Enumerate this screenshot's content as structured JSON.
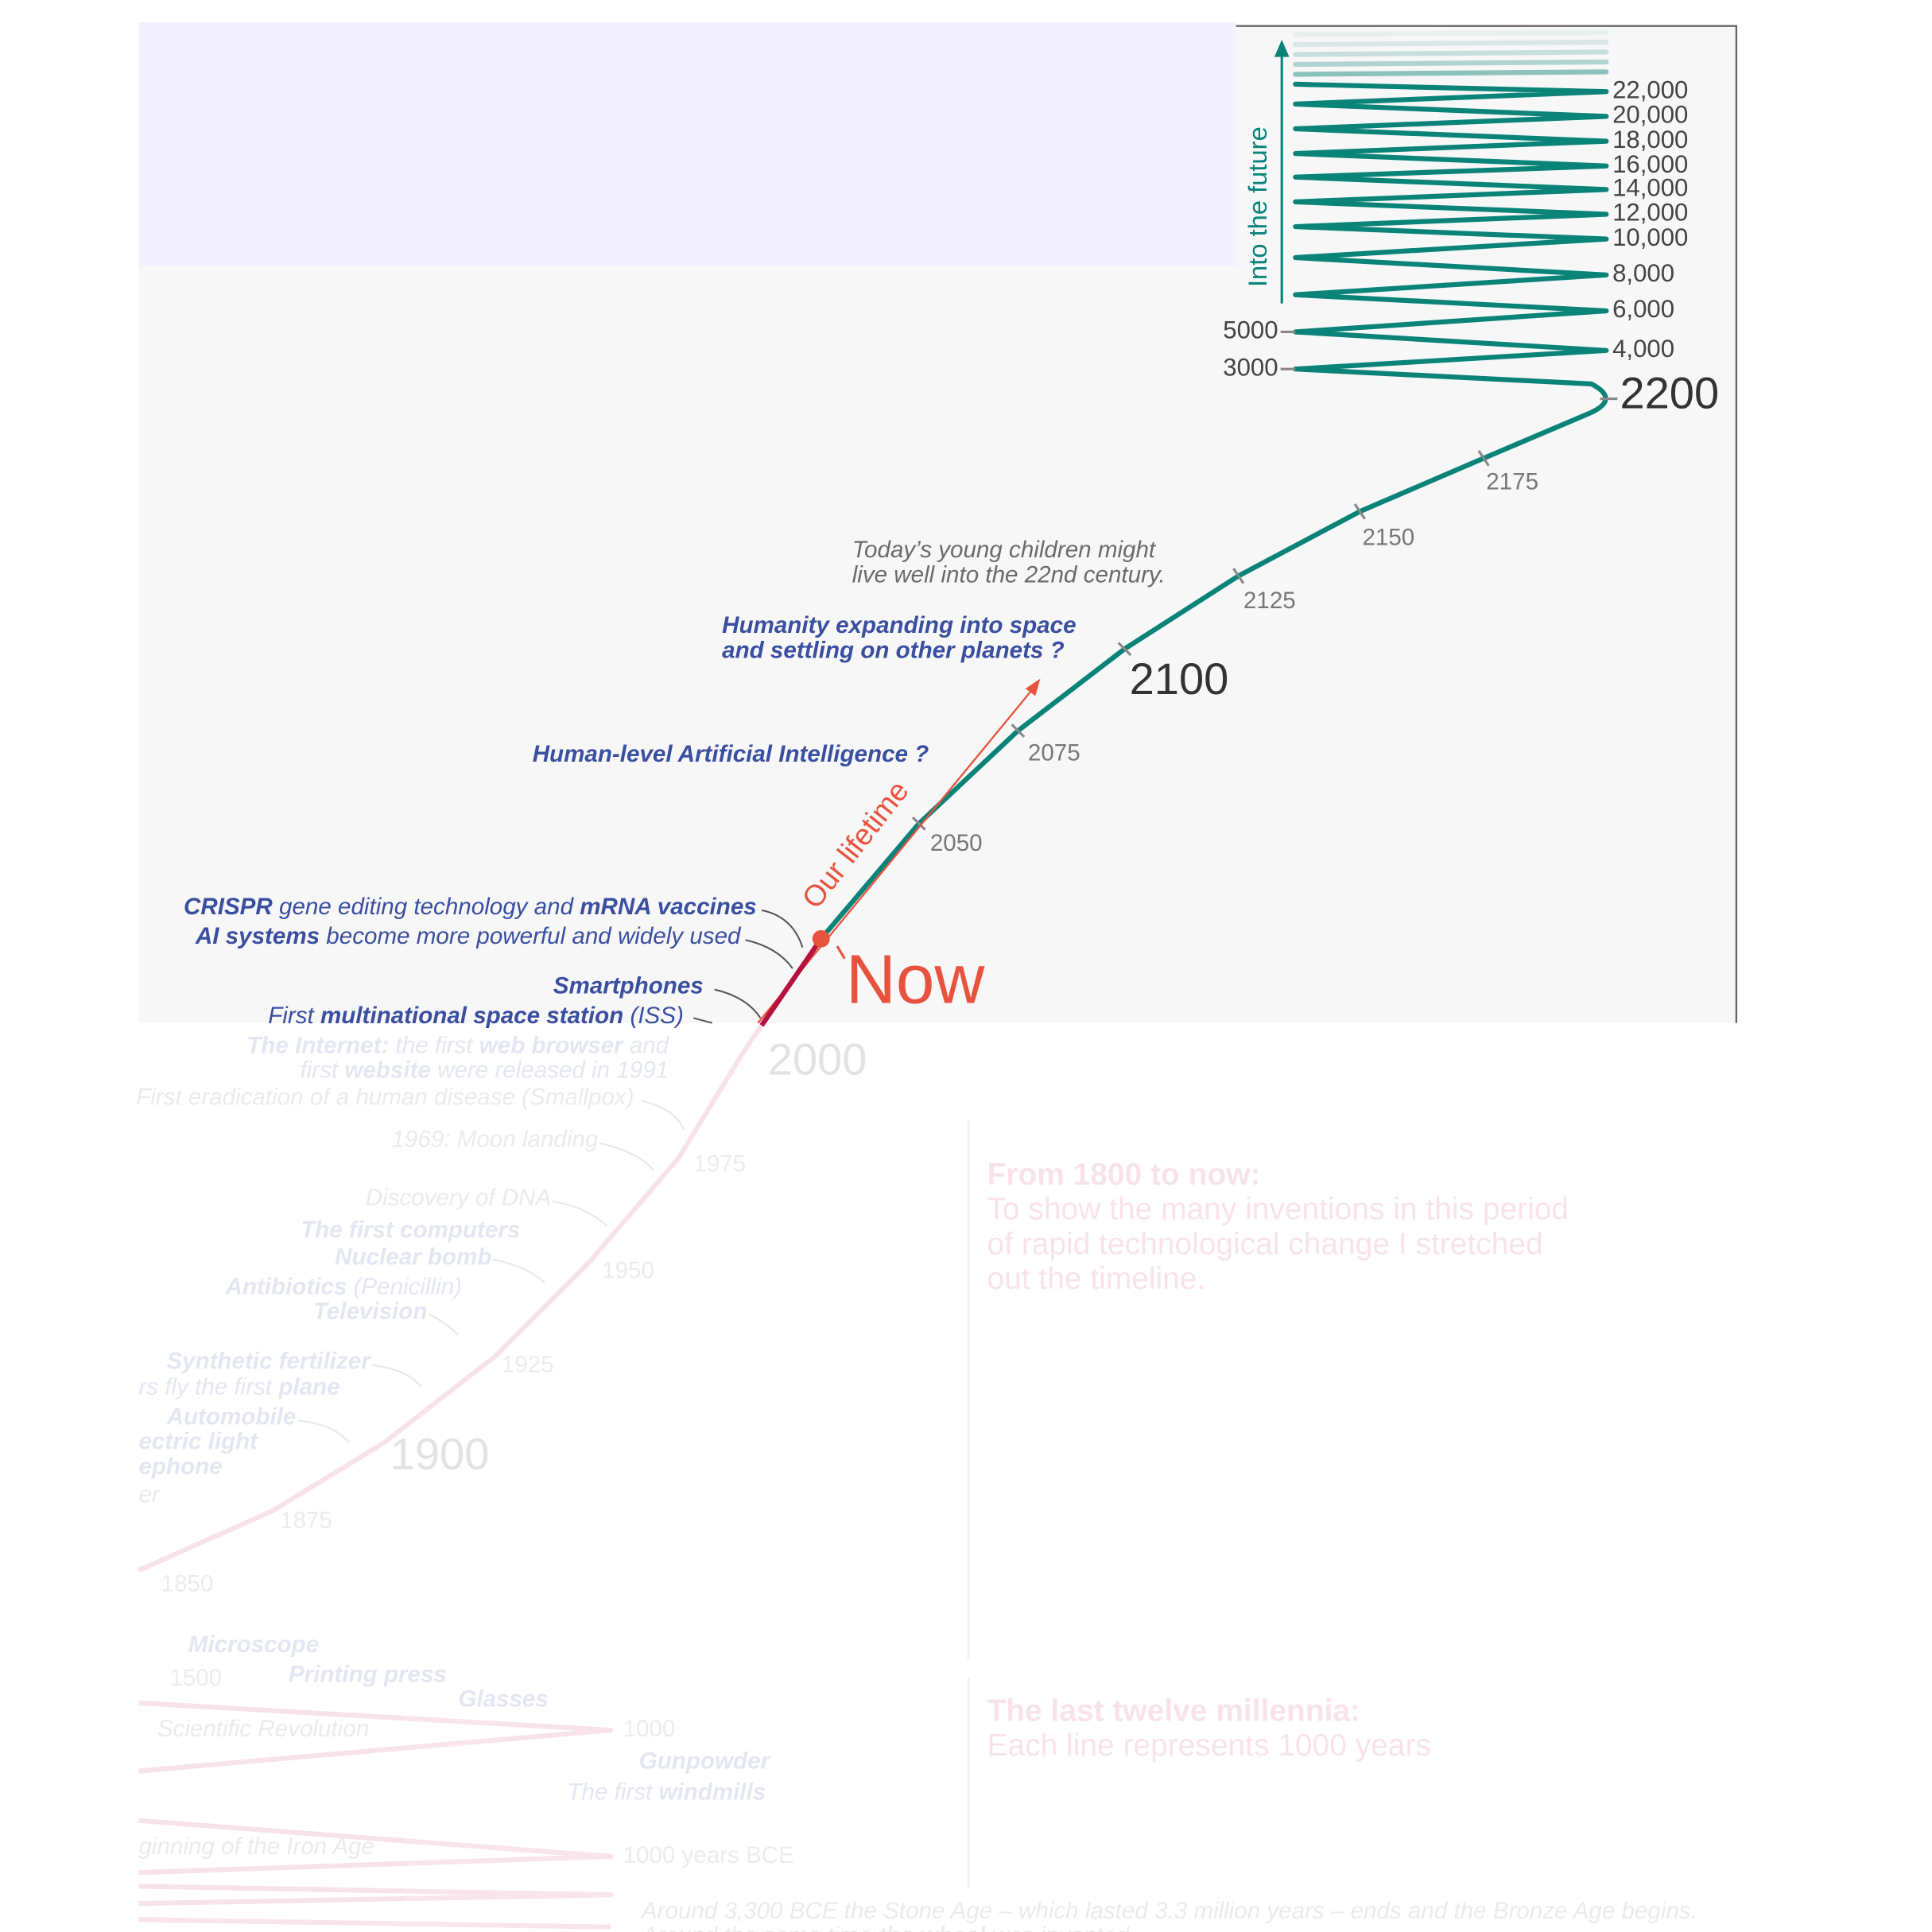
{
  "future": {
    "axis_label": "Into the future",
    "right_ticks": [
      "22,000",
      "20,000",
      "18,000",
      "16,000",
      "14,000",
      "12,000",
      "10,000",
      "8,000",
      "6,000",
      "4,000"
    ],
    "left_ticks": [
      "5000",
      "3000"
    ],
    "end_label": "2200"
  },
  "timeline": {
    "ticks": [
      "2175",
      "2150",
      "2125",
      "2100",
      "2075",
      "2050"
    ],
    "now": "Now",
    "lifetime": "Our lifetime"
  },
  "past_ticks": [
    "2000",
    "1975",
    "1950",
    "1925",
    "1900",
    "1875",
    "1850",
    "1500",
    "1000",
    "1000 years BCE"
  ],
  "items": [
    {
      "lines": [
        [
          "Today’s young children might"
        ],
        [
          "live well into the 22nd century."
        ]
      ]
    },
    {
      "lines": [
        [
          "Humanity expanding into space"
        ],
        [
          "and settling on other planets ?"
        ]
      ],
      "bold": [
        [
          true
        ],
        [
          true
        ]
      ]
    },
    {
      "lines": [
        [
          "Human-level Artificial Intelligence ?"
        ]
      ],
      "bold": [
        [
          true
        ]
      ]
    },
    {
      "lines": [
        [
          "CRISPR",
          " gene editing technology and ",
          "mRNA vaccines"
        ]
      ],
      "bold": [
        [
          true,
          false,
          true
        ]
      ]
    },
    {
      "lines": [
        [
          "AI systems",
          " become more powerful and widely used"
        ]
      ],
      "bold": [
        [
          true,
          false
        ]
      ]
    },
    {
      "lines": [
        [
          "Smartphones"
        ]
      ],
      "bold": [
        [
          true
        ]
      ]
    },
    {
      "lines": [
        [
          "First ",
          "multinational space station",
          " (ISS)"
        ]
      ],
      "bold": [
        [
          false,
          true,
          false
        ]
      ]
    },
    {
      "lines": [
        [
          "The Internet:",
          " the first ",
          "web browser",
          " and"
        ],
        [
          "first ",
          "website",
          " were released in 1991"
        ]
      ],
      "bold": [
        [
          true,
          false,
          true,
          false
        ],
        [
          false,
          true,
          false
        ]
      ]
    },
    {
      "lines": [
        [
          "First eradication of a human disease (Smallpox)"
        ]
      ]
    },
    {
      "lines": [
        [
          "1969: Moon landing"
        ]
      ]
    },
    {
      "lines": [
        [
          "Discovery of DNA"
        ]
      ]
    },
    {
      "lines": [
        [
          "The first computers"
        ]
      ],
      "bold": [
        [
          true
        ]
      ]
    },
    {
      "lines": [
        [
          "Nuclear bomb"
        ]
      ],
      "bold": [
        [
          true
        ]
      ]
    },
    {
      "lines": [
        [
          "Antibiotics",
          " (Penicillin)"
        ]
      ],
      "bold": [
        [
          true,
          false
        ]
      ]
    },
    {
      "lines": [
        [
          "Television"
        ]
      ],
      "bold": [
        [
          true
        ]
      ]
    },
    {
      "lines": [
        [
          "Synthetic fertilizer"
        ]
      ],
      "bold": [
        [
          true
        ]
      ]
    },
    {
      "lines": [
        [
          "rs fly the first ",
          "plane"
        ]
      ],
      "bold": [
        [
          false,
          true
        ]
      ]
    },
    {
      "lines": [
        [
          "Automobile"
        ]
      ],
      "bold": [
        [
          true
        ]
      ]
    },
    {
      "lines": [
        [
          "ectric light"
        ]
      ],
      "bold": [
        [
          true
        ]
      ]
    },
    {
      "lines": [
        [
          "ephone"
        ]
      ],
      "bold": [
        [
          true
        ]
      ]
    },
    {
      "lines": [
        [
          "er"
        ]
      ]
    },
    {
      "lines": [
        [
          "Microscope"
        ]
      ],
      "bold": [
        [
          true
        ]
      ]
    },
    {
      "lines": [
        [
          "Printing press"
        ]
      ],
      "bold": [
        [
          true
        ]
      ]
    },
    {
      "lines": [
        [
          "Glasses"
        ]
      ],
      "bold": [
        [
          true
        ]
      ]
    },
    {
      "lines": [
        [
          "Scientific Revolution"
        ]
      ]
    },
    {
      "lines": [
        [
          "Gunpowder"
        ]
      ],
      "bold": [
        [
          true
        ]
      ]
    },
    {
      "lines": [
        [
          "The first ",
          "windmills"
        ]
      ],
      "bold": [
        [
          false,
          true
        ]
      ]
    },
    {
      "lines": [
        [
          "ginning of the Iron Age"
        ]
      ]
    },
    {
      "lines": [
        [
          "Around 3,300 BCE the Stone Age – which lasted 3.3 million years – ends and the Bronze Age begins."
        ],
        [
          "Around the same time ",
          "the wheel",
          " was invented."
        ]
      ],
      "bold": [
        [
          false
        ],
        [
          false,
          true,
          false
        ]
      ]
    }
  ],
  "sections": [
    {
      "heading": "From 1800 to now:",
      "lines": [
        "To show the many inventions in this period",
        "of rapid technological change I stretched",
        "out the timeline."
      ]
    },
    {
      "heading": "The last twelve millennia:",
      "lines": [
        "Each line represents 1000 years"
      ]
    }
  ]
}
